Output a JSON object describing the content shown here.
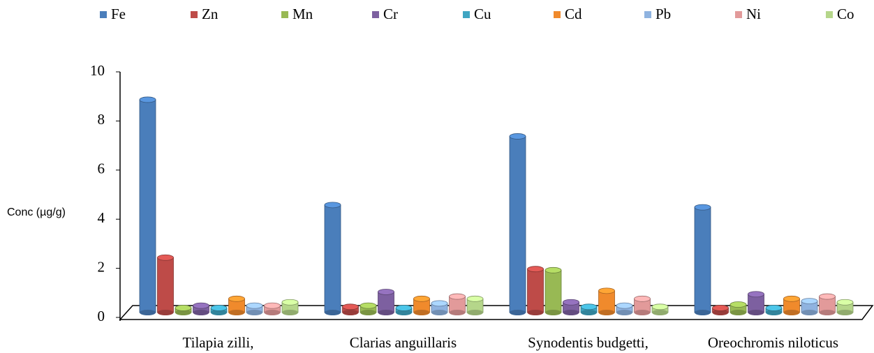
{
  "chart_data": {
    "type": "bar",
    "y_label": "Conc (µg/g)",
    "categories": [
      "Tilapia zilli,",
      "Clarias anguillaris",
      "Synodentis budgetti,",
      "Oreochromis niloticus"
    ],
    "series": [
      {
        "name": "Fe",
        "color": "#4a7ebb",
        "values": [
          9.3,
          4.7,
          7.7,
          4.6
        ]
      },
      {
        "name": "Zn",
        "color": "#be4b48",
        "values": [
          2.4,
          0.25,
          1.9,
          0.2
        ]
      },
      {
        "name": "Mn",
        "color": "#98b954",
        "values": [
          0.2,
          0.3,
          1.85,
          0.35
        ]
      },
      {
        "name": "Cr",
        "color": "#7d60a0",
        "values": [
          0.3,
          0.9,
          0.45,
          0.8
        ]
      },
      {
        "name": "Cu",
        "color": "#3fa5c2",
        "values": [
          0.2,
          0.2,
          0.25,
          0.2
        ]
      },
      {
        "name": "Cd",
        "color": "#f08a2c",
        "values": [
          0.6,
          0.6,
          0.95,
          0.6
        ]
      },
      {
        "name": "Pb",
        "color": "#8fb3e0",
        "values": [
          0.3,
          0.4,
          0.3,
          0.5
        ]
      },
      {
        "name": "Ni",
        "color": "#e29a9a",
        "values": [
          0.3,
          0.7,
          0.6,
          0.7
        ]
      },
      {
        "name": "Co",
        "color": "#b5d68a",
        "values": [
          0.45,
          0.6,
          0.25,
          0.45
        ]
      }
    ],
    "ylim": [
      0,
      10
    ],
    "yticks": [
      0,
      2,
      4,
      6,
      8,
      10
    ],
    "legend": "top"
  }
}
